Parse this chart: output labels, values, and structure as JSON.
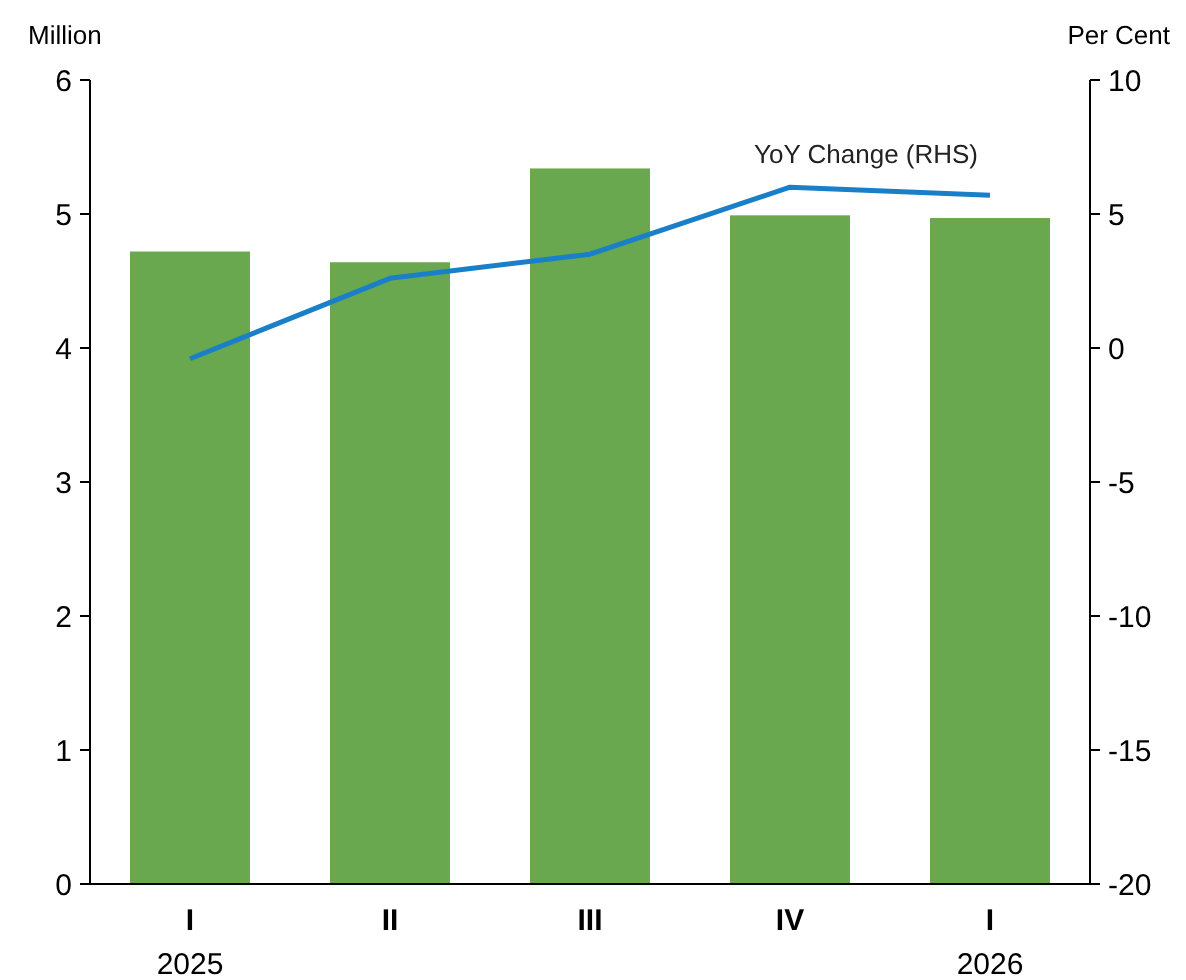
{
  "chart_data": {
    "type": "bar",
    "ylabel": "Million",
    "y2label": "Per Cent",
    "categories": [
      "I\n2025",
      "II",
      "III",
      "IV",
      "I\n2026"
    ],
    "series": [
      {
        "color": "#6aa84f",
        "values": [
          4.72,
          4.64,
          5.34,
          4.99,
          4.97
        ]
      },
      {
        "type": "line",
        "name": "YoY Change (RHS)",
        "axis": "y2",
        "color": "#1a7fc9",
        "values": [
          -0.4,
          2.6,
          3.5,
          6.0,
          5.7
        ]
      }
    ],
    "ylim": [
      0,
      6
    ],
    "yticks": [
      0,
      1,
      2,
      3,
      4,
      5,
      6
    ],
    "y2lim": [
      -20,
      10
    ],
    "y2ticks": [
      -20,
      -15,
      -10,
      -5,
      0,
      5,
      10
    ],
    "grid": false,
    "marker": "none",
    "line_style": "solid"
  }
}
